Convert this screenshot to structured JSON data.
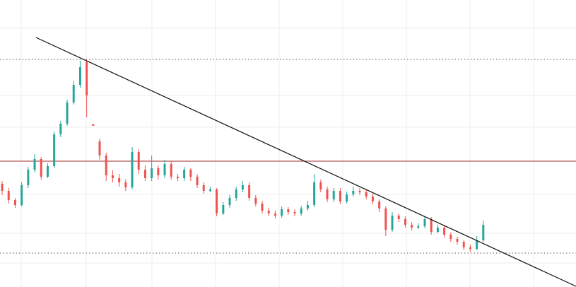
{
  "chart_data": {
    "type": "candlestick",
    "xlim": [
      -0.33,
      88.26
    ],
    "ylim": [
      0,
      406
    ],
    "grid": true,
    "up_color": "#26a69a",
    "down_color": "#ef5350",
    "open": [
      146,
      136,
      123,
      116,
      144,
      166,
      181,
      156,
      171,
      216,
      231,
      261,
      286,
      318,
      230,
      206,
      186,
      158,
      154,
      148,
      141,
      191,
      166,
      154,
      168,
      158,
      174,
      156,
      154,
      166,
      156,
      144,
      136,
      138,
      104,
      116,
      126,
      138,
      144,
      126,
      118,
      108,
      104,
      101,
      110,
      106,
      104,
      111,
      116,
      148,
      138,
      124,
      136,
      121,
      131,
      136,
      134,
      128,
      121,
      111,
      81,
      101,
      96,
      88,
      84,
      86,
      96,
      78,
      84,
      74,
      68,
      64,
      56,
      54,
      66
    ],
    "high": [
      150,
      140,
      126,
      148,
      170,
      188,
      184,
      175,
      220,
      235,
      265,
      292,
      320,
      322,
      231,
      210,
      190,
      165,
      160,
      152,
      198,
      195,
      172,
      186,
      172,
      180,
      178,
      160,
      170,
      168,
      160,
      148,
      142,
      140,
      120,
      130,
      142,
      150,
      148,
      130,
      122,
      112,
      108,
      114,
      113,
      110,
      115,
      122,
      160,
      152,
      142,
      140,
      140,
      135,
      142,
      140,
      138,
      132,
      124,
      114,
      106,
      104,
      100,
      92,
      90,
      100,
      99,
      88,
      87,
      77,
      71,
      66,
      60,
      72,
      94
    ],
    "low": [
      130,
      118,
      112,
      114,
      140,
      162,
      152,
      154,
      168,
      212,
      228,
      258,
      282,
      240,
      228,
      180,
      150,
      148,
      142,
      136,
      138,
      160,
      150,
      150,
      152,
      154,
      152,
      150,
      150,
      150,
      140,
      132,
      134,
      100,
      102,
      112,
      122,
      134,
      122,
      114,
      104,
      100,
      97,
      98,
      102,
      100,
      101,
      108,
      113,
      134,
      120,
      120,
      117,
      118,
      128,
      130,
      124,
      117,
      106,
      72,
      78,
      92,
      84,
      80,
      82,
      83,
      74,
      76,
      70,
      64,
      60,
      52,
      50,
      52,
      64
    ],
    "close": [
      136,
      123,
      116,
      144,
      166,
      181,
      156,
      171,
      216,
      231,
      261,
      286,
      311,
      271,
      228,
      186,
      158,
      154,
      148,
      141,
      191,
      166,
      154,
      168,
      158,
      174,
      156,
      154,
      166,
      156,
      144,
      136,
      138,
      104,
      116,
      126,
      138,
      144,
      126,
      118,
      108,
      104,
      101,
      110,
      106,
      104,
      111,
      116,
      148,
      138,
      124,
      136,
      121,
      131,
      136,
      134,
      128,
      121,
      111,
      81,
      101,
      96,
      88,
      84,
      86,
      96,
      78,
      84,
      74,
      68,
      64,
      56,
      54,
      66,
      88
    ],
    "levels": [
      {
        "value": 178,
        "color": "#a52a2a",
        "style": "solid"
      },
      {
        "value": 322,
        "color": "#555555",
        "style": "dotted"
      },
      {
        "value": 48,
        "color": "#555555",
        "style": "dotted"
      }
    ],
    "trendline": {
      "color": "#111111",
      "points": [
        [
          5.2,
          353
        ],
        [
          88.26,
          1
        ]
      ]
    }
  }
}
